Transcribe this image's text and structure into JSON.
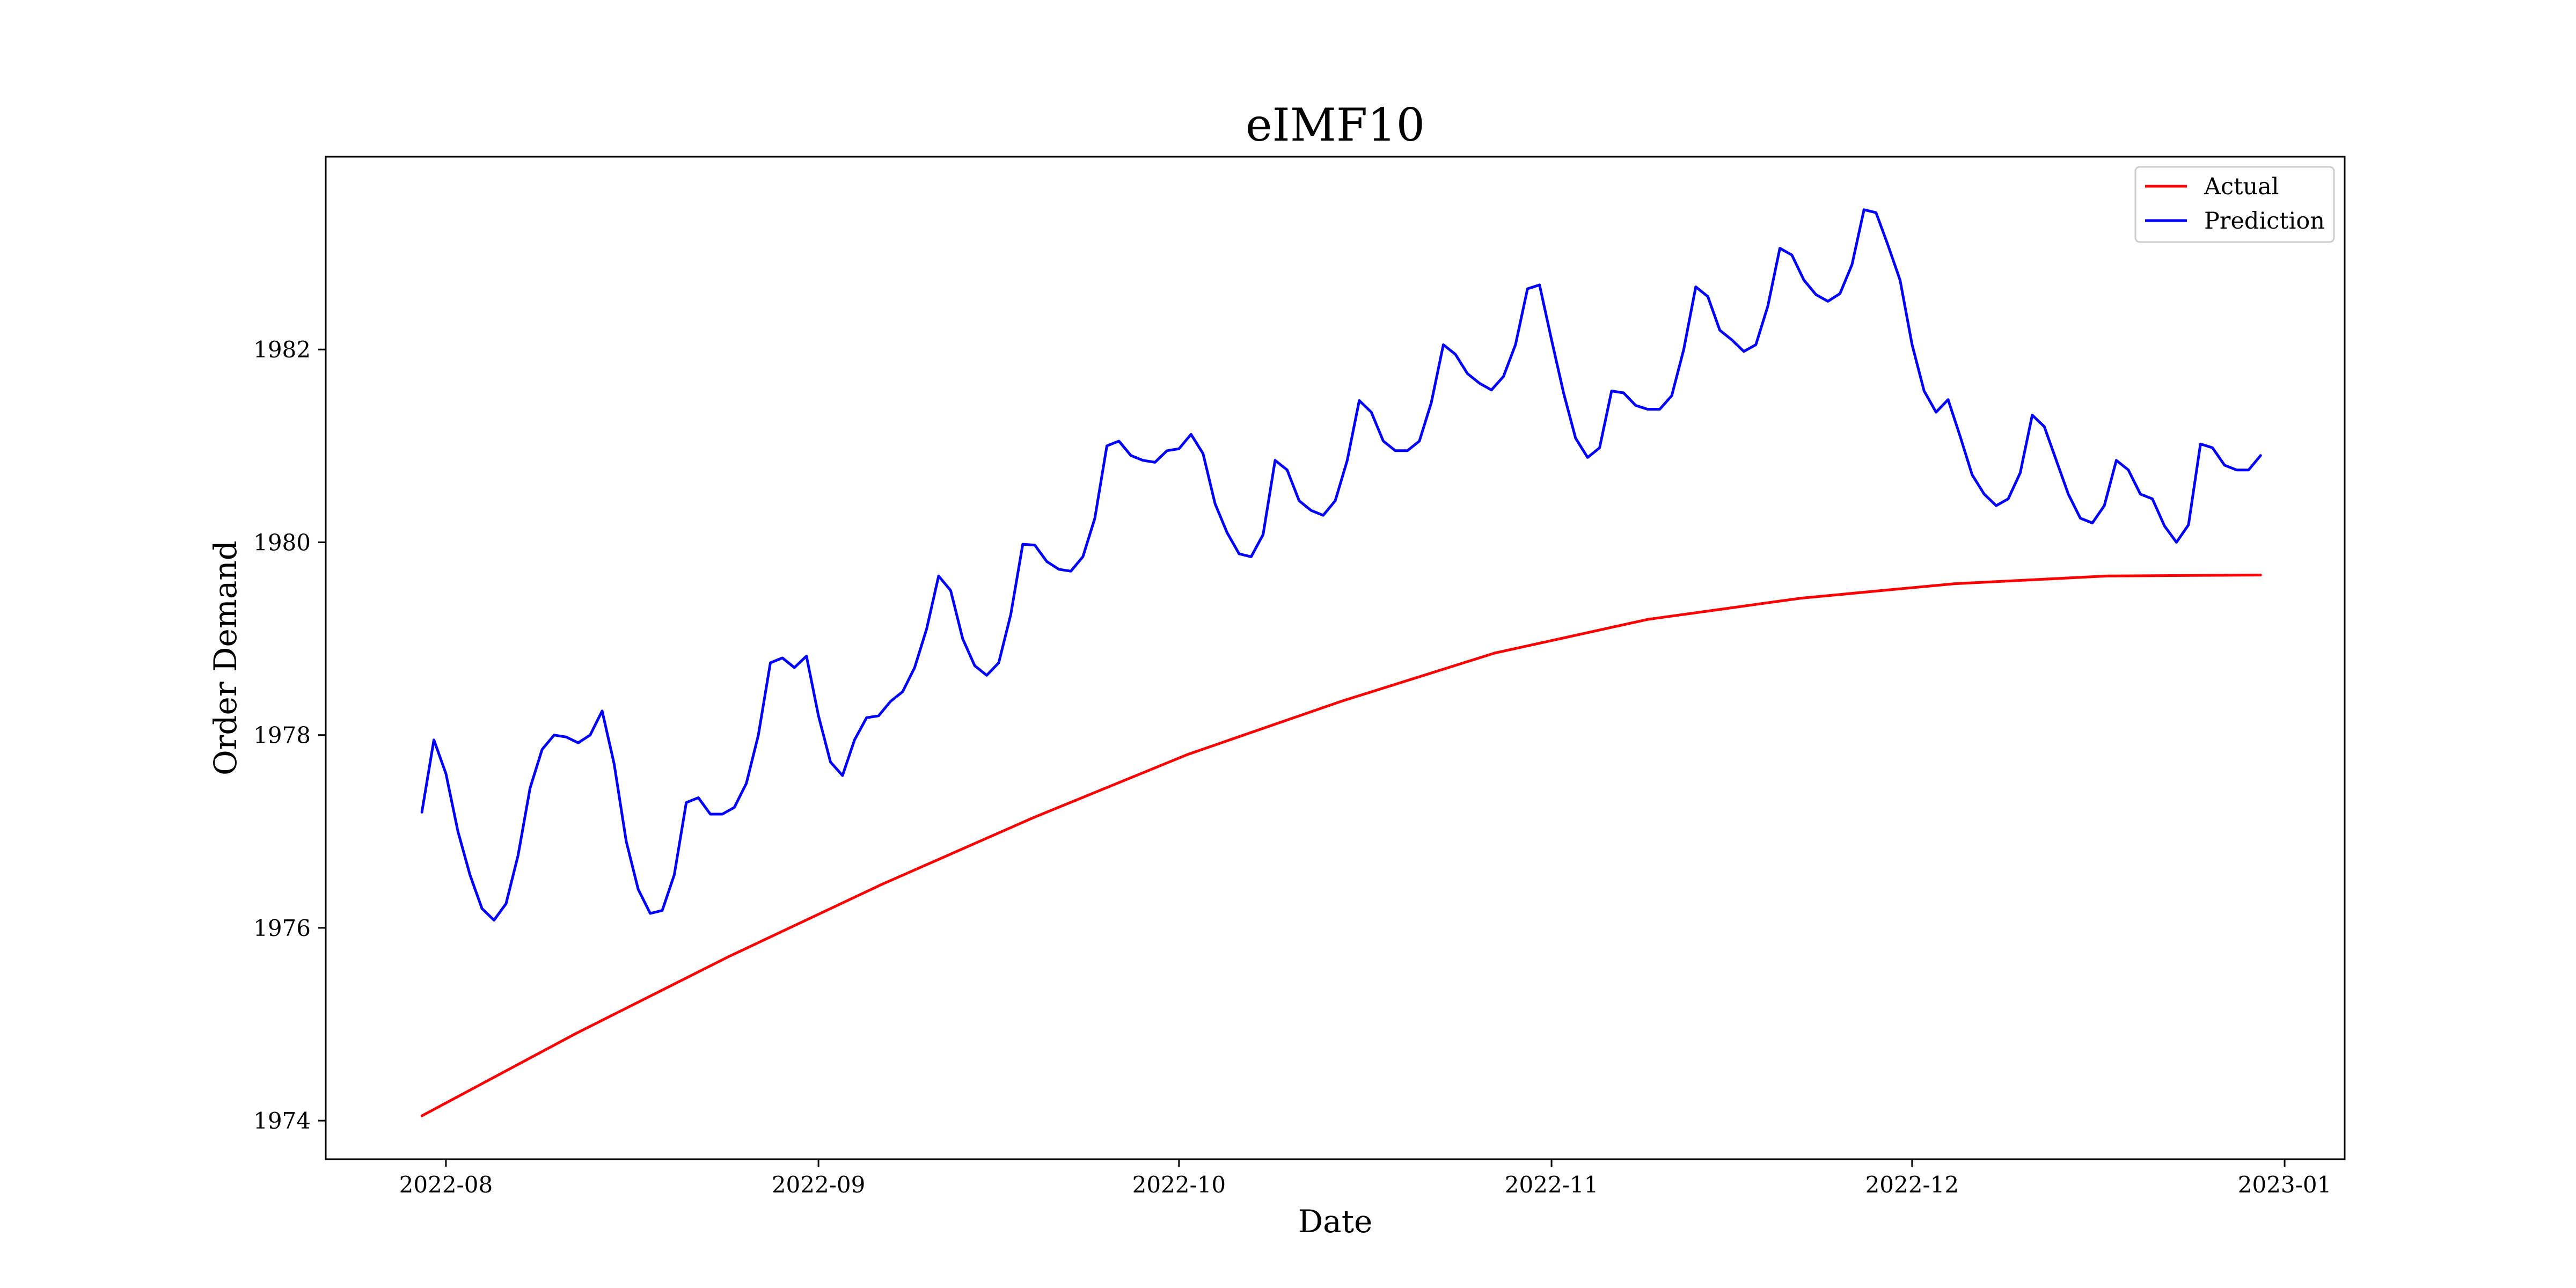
{
  "chart_data": {
    "type": "line",
    "title": "eIMF10",
    "xlabel": "Date",
    "ylabel": "Order Demand",
    "x_start": "2022-07-30",
    "x_end": "2022-12-30",
    "x_tick_labels": [
      "2022-08",
      "2022-09",
      "2022-10",
      "2022-11",
      "2022-12",
      "2023-01"
    ],
    "y_ticks": [
      1974,
      1976,
      1978,
      1980,
      1982
    ],
    "xlim": [
      "2022-07-22",
      "2023-01-06"
    ],
    "ylim": [
      1973.6,
      1984.0
    ],
    "grid": false,
    "legend_position": "top-right",
    "series": [
      {
        "name": "Actual",
        "color": "#ff0000",
        "values": [
          1974.05,
          1974.9,
          1975.7,
          1976.45,
          1977.15,
          1977.8,
          1978.35,
          1978.85,
          1979.2,
          1979.42,
          1979.57,
          1979.65,
          1979.66
        ]
      },
      {
        "name": "Prediction",
        "color": "#0000ff",
        "values": [
          1977.2,
          1977.95,
          1977.6,
          1977.0,
          1976.55,
          1976.2,
          1976.08,
          1976.25,
          1976.75,
          1977.45,
          1977.85,
          1978.0,
          1977.98,
          1977.92,
          1978.0,
          1978.25,
          1977.7,
          1976.9,
          1976.4,
          1976.15,
          1976.18,
          1976.55,
          1977.3,
          1977.35,
          1977.18,
          1977.18,
          1977.25,
          1977.5,
          1978.0,
          1978.75,
          1978.8,
          1978.7,
          1978.82,
          1978.2,
          1977.72,
          1977.58,
          1977.95,
          1978.18,
          1978.2,
          1978.35,
          1978.45,
          1978.7,
          1979.1,
          1979.65,
          1979.5,
          1979.0,
          1978.72,
          1978.62,
          1978.75,
          1979.25,
          1979.98,
          1979.97,
          1979.8,
          1979.72,
          1979.7,
          1979.85,
          1980.25,
          1981.0,
          1981.05,
          1980.9,
          1980.85,
          1980.83,
          1980.95,
          1980.97,
          1981.12,
          1980.92,
          1980.4,
          1980.1,
          1979.88,
          1979.85,
          1980.08,
          1980.85,
          1980.75,
          1980.43,
          1980.33,
          1980.28,
          1980.43,
          1980.85,
          1981.47,
          1981.35,
          1981.05,
          1980.95,
          1980.95,
          1981.05,
          1981.45,
          1982.05,
          1981.95,
          1981.75,
          1981.65,
          1981.58,
          1981.72,
          1982.05,
          1982.63,
          1982.67,
          1982.1,
          1981.55,
          1981.08,
          1980.88,
          1980.98,
          1981.57,
          1981.55,
          1981.42,
          1981.38,
          1981.38,
          1981.52,
          1982.0,
          1982.65,
          1982.55,
          1982.2,
          1982.1,
          1981.98,
          1982.05,
          1982.45,
          1983.05,
          1982.98,
          1982.72,
          1982.57,
          1982.5,
          1982.58,
          1982.88,
          1983.45,
          1983.42,
          1983.08,
          1982.72,
          1982.05,
          1981.57,
          1981.35,
          1981.48,
          1981.1,
          1980.7,
          1980.5,
          1980.38,
          1980.45,
          1980.72,
          1981.32,
          1981.2,
          1980.85,
          1980.5,
          1980.25,
          1980.2,
          1980.38,
          1980.85,
          1980.75,
          1980.5,
          1980.45,
          1980.17,
          1980.0,
          1980.18,
          1981.02,
          1980.98,
          1980.8,
          1980.75,
          1980.75,
          1980.9
        ]
      }
    ]
  }
}
